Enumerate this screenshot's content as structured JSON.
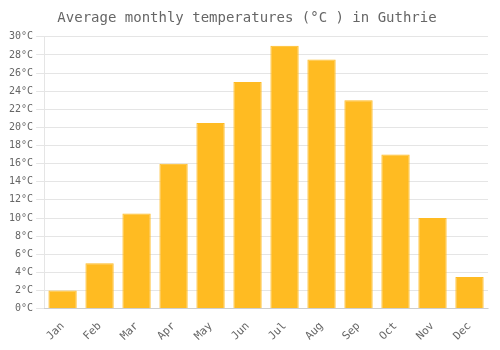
{
  "chart_data": {
    "type": "bar",
    "title": "Average monthly temperatures (°C ) in Guthrie",
    "categories": [
      "Jan",
      "Feb",
      "Mar",
      "Apr",
      "May",
      "Jun",
      "Jul",
      "Aug",
      "Sep",
      "Oct",
      "Nov",
      "Dec"
    ],
    "values": [
      2,
      5,
      10.5,
      16,
      20.5,
      25,
      29,
      27.5,
      23,
      17,
      10,
      3.5
    ],
    "color": "#FFBB22",
    "ylim": [
      0,
      30
    ],
    "yticks": [
      {
        "value": 0,
        "label": "0°C"
      },
      {
        "value": 2,
        "label": "2°C"
      },
      {
        "value": 4,
        "label": "4°C"
      },
      {
        "value": 6,
        "label": "6°C"
      },
      {
        "value": 8,
        "label": "8°C"
      },
      {
        "value": 10,
        "label": "10°C"
      },
      {
        "value": 12,
        "label": "12°C"
      },
      {
        "value": 14,
        "label": "14°C"
      },
      {
        "value": 16,
        "label": "16°C"
      },
      {
        "value": 18,
        "label": "18°C"
      },
      {
        "value": 20,
        "label": "20°C"
      },
      {
        "value": 22,
        "label": "22°C"
      },
      {
        "value": 24,
        "label": "24°C"
      },
      {
        "value": 26,
        "label": "26°C"
      },
      {
        "value": 28,
        "label": "28°C"
      },
      {
        "value": 30,
        "label": "30°C"
      }
    ],
    "grid": true
  }
}
